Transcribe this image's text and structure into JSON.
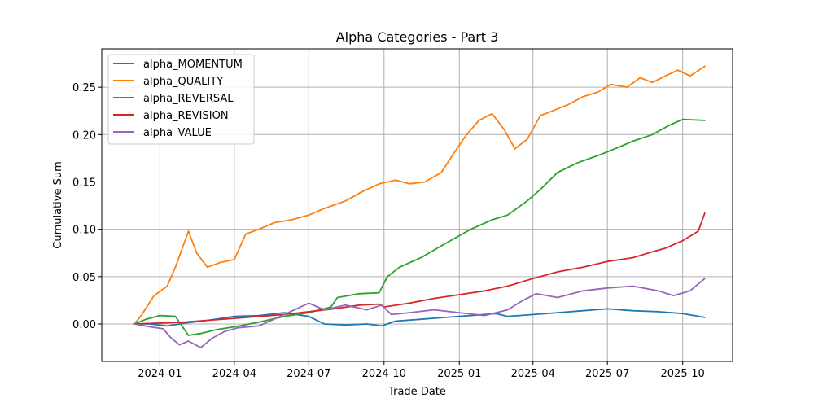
{
  "chart_data": {
    "type": "line",
    "title": "Alpha Categories - Part 3",
    "xlabel": "Trade Date",
    "ylabel": "Cumulative Sum",
    "xlim": [
      "2023-10-22",
      "2025-12-01"
    ],
    "ylim": [
      -0.0395,
      0.2905
    ],
    "grid": true,
    "legend_position": "top-left",
    "x_ticks": [
      "2024-01-01",
      "2024-04-01",
      "2024-07-01",
      "2024-10-01",
      "2025-01-01",
      "2025-04-01",
      "2025-07-01",
      "2025-10-01"
    ],
    "x_tick_labels": [
      "2024-01",
      "2024-04",
      "2024-07",
      "2024-10",
      "2025-01",
      "2025-04",
      "2025-07",
      "2025-10"
    ],
    "y_ticks": [
      0.0,
      0.05,
      0.1,
      0.15,
      0.2,
      0.25
    ],
    "y_tick_labels": [
      "0.00",
      "0.05",
      "0.10",
      "0.15",
      "0.20",
      "0.25"
    ],
    "series": [
      {
        "name": "alpha_MOMENTUM",
        "color": "#1f77b4",
        "x": [
          "2023-12-01",
          "2023-12-20",
          "2024-01-10",
          "2024-02-01",
          "2024-03-01",
          "2024-04-01",
          "2024-05-01",
          "2024-06-01",
          "2024-07-01",
          "2024-07-20",
          "2024-08-15",
          "2024-09-10",
          "2024-09-28",
          "2024-10-15",
          "2024-11-15",
          "2024-12-15",
          "2025-01-15",
          "2025-02-15",
          "2025-03-01",
          "2025-04-01",
          "2025-05-01",
          "2025-06-01",
          "2025-07-01",
          "2025-08-01",
          "2025-09-01",
          "2025-10-01",
          "2025-10-28"
        ],
        "y": [
          0.0,
          0.0,
          -0.002,
          0.001,
          0.004,
          0.008,
          0.009,
          0.012,
          0.008,
          0.0,
          -0.001,
          0.0,
          -0.002,
          0.003,
          0.005,
          0.007,
          0.009,
          0.011,
          0.008,
          0.01,
          0.012,
          0.014,
          0.016,
          0.014,
          0.013,
          0.011,
          0.007
        ]
      },
      {
        "name": "alpha_QUALITY",
        "color": "#ff7f0e",
        "x": [
          "2023-12-01",
          "2023-12-10",
          "2023-12-25",
          "2024-01-10",
          "2024-01-20",
          "2024-02-05",
          "2024-02-15",
          "2024-02-28",
          "2024-03-15",
          "2024-04-01",
          "2024-04-15",
          "2024-05-01",
          "2024-05-20",
          "2024-06-10",
          "2024-07-01",
          "2024-07-20",
          "2024-08-15",
          "2024-09-05",
          "2024-09-25",
          "2024-10-15",
          "2024-11-01",
          "2024-11-20",
          "2024-12-10",
          "2024-12-25",
          "2025-01-10",
          "2025-01-25",
          "2025-02-10",
          "2025-02-25",
          "2025-03-10",
          "2025-03-25",
          "2025-04-10",
          "2025-04-25",
          "2025-05-15",
          "2025-06-01",
          "2025-06-20",
          "2025-07-05",
          "2025-07-25",
          "2025-08-10",
          "2025-08-25",
          "2025-09-10",
          "2025-09-25",
          "2025-10-10",
          "2025-10-28"
        ],
        "y": [
          0.0,
          0.01,
          0.03,
          0.04,
          0.06,
          0.098,
          0.075,
          0.06,
          0.065,
          0.068,
          0.095,
          0.1,
          0.107,
          0.11,
          0.115,
          0.122,
          0.13,
          0.14,
          0.148,
          0.152,
          0.148,
          0.15,
          0.16,
          0.18,
          0.2,
          0.215,
          0.222,
          0.205,
          0.185,
          0.195,
          0.22,
          0.225,
          0.232,
          0.24,
          0.245,
          0.253,
          0.25,
          0.26,
          0.255,
          0.262,
          0.268,
          0.262,
          0.272
        ]
      },
      {
        "name": "alpha_REVERSAL",
        "color": "#2ca02c",
        "x": [
          "2023-12-01",
          "2023-12-15",
          "2024-01-01",
          "2024-01-20",
          "2024-02-05",
          "2024-02-20",
          "2024-03-10",
          "2024-04-01",
          "2024-05-01",
          "2024-06-01",
          "2024-07-01",
          "2024-07-28",
          "2024-08-05",
          "2024-09-01",
          "2024-09-25",
          "2024-10-05",
          "2024-10-20",
          "2024-11-15",
          "2024-12-15",
          "2025-01-15",
          "2025-02-10",
          "2025-03-01",
          "2025-03-25",
          "2025-04-10",
          "2025-05-01",
          "2025-05-25",
          "2025-06-20",
          "2025-07-10",
          "2025-08-01",
          "2025-08-25",
          "2025-09-15",
          "2025-10-01",
          "2025-10-28"
        ],
        "y": [
          0.0,
          0.005,
          0.009,
          0.008,
          -0.012,
          -0.01,
          -0.006,
          -0.003,
          0.002,
          0.008,
          0.012,
          0.018,
          0.028,
          0.032,
          0.033,
          0.05,
          0.06,
          0.07,
          0.085,
          0.1,
          0.11,
          0.115,
          0.13,
          0.142,
          0.16,
          0.17,
          0.178,
          0.185,
          0.193,
          0.2,
          0.21,
          0.216,
          0.215
        ]
      },
      {
        "name": "alpha_REVISION",
        "color": "#d62728",
        "x": [
          "2023-12-01",
          "2024-01-01",
          "2024-02-01",
          "2024-03-01",
          "2024-04-01",
          "2024-05-01",
          "2024-06-01",
          "2024-07-01",
          "2024-08-01",
          "2024-09-01",
          "2024-09-25",
          "2024-10-01",
          "2024-11-01",
          "2024-12-01",
          "2025-01-01",
          "2025-02-01",
          "2025-03-01",
          "2025-04-01",
          "2025-05-01",
          "2025-06-01",
          "2025-07-01",
          "2025-08-01",
          "2025-08-20",
          "2025-09-10",
          "2025-10-01",
          "2025-10-20",
          "2025-10-28"
        ],
        "y": [
          0.0,
          0.001,
          0.002,
          0.004,
          0.006,
          0.008,
          0.01,
          0.013,
          0.016,
          0.02,
          0.021,
          0.018,
          0.022,
          0.027,
          0.031,
          0.035,
          0.04,
          0.048,
          0.055,
          0.06,
          0.066,
          0.07,
          0.075,
          0.08,
          0.088,
          0.098,
          0.117
        ]
      },
      {
        "name": "alpha_VALUE",
        "color": "#9467bd",
        "x": [
          "2023-12-01",
          "2023-12-20",
          "2024-01-05",
          "2024-01-15",
          "2024-01-25",
          "2024-02-05",
          "2024-02-20",
          "2024-03-05",
          "2024-03-20",
          "2024-04-05",
          "2024-05-01",
          "2024-06-01",
          "2024-07-01",
          "2024-07-20",
          "2024-08-15",
          "2024-09-10",
          "2024-09-28",
          "2024-10-10",
          "2024-11-01",
          "2024-12-01",
          "2025-01-01",
          "2025-02-01",
          "2025-03-01",
          "2025-03-20",
          "2025-04-05",
          "2025-05-01",
          "2025-06-01",
          "2025-07-01",
          "2025-08-01",
          "2025-09-01",
          "2025-09-20",
          "2025-10-10",
          "2025-10-28"
        ],
        "y": [
          0.0,
          -0.003,
          -0.005,
          -0.015,
          -0.022,
          -0.018,
          -0.025,
          -0.015,
          -0.008,
          -0.004,
          -0.002,
          0.01,
          0.022,
          0.015,
          0.02,
          0.015,
          0.02,
          0.01,
          0.012,
          0.015,
          0.012,
          0.009,
          0.015,
          0.025,
          0.032,
          0.028,
          0.035,
          0.038,
          0.04,
          0.035,
          0.03,
          0.035,
          0.048
        ]
      }
    ]
  }
}
